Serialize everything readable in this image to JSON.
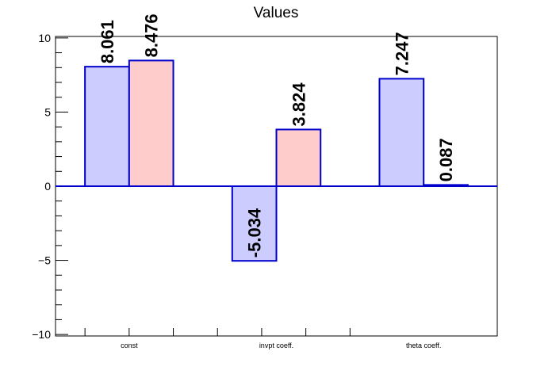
{
  "chart_data": {
    "type": "bar",
    "title": "Values",
    "xlabel": "",
    "ylabel": "",
    "categories": [
      "const",
      "invpt coeff.",
      "theta coeff."
    ],
    "series": [
      {
        "values": [
          8.061,
          -5.034,
          7.247
        ],
        "value_labels": [
          "8.061",
          "-5.034",
          "7.247"
        ],
        "fill": "#ccccff",
        "stroke": "#0000cc"
      },
      {
        "values": [
          8.476,
          3.824,
          0.087
        ],
        "value_labels": [
          "8.476",
          "3.824",
          "0.087"
        ],
        "fill": "#ffcccc",
        "stroke": "#0000cc"
      }
    ],
    "ylim": [
      -10.1,
      10.1
    ],
    "yticks": [
      -10,
      -5,
      0,
      5,
      10
    ],
    "ytick_labels": [
      "−10",
      "−5",
      "0",
      "5",
      "10"
    ],
    "grid": false,
    "legend": "none",
    "colors": {
      "axis": "#000000",
      "zero_line": "#0000cc",
      "label": "#000000"
    }
  }
}
